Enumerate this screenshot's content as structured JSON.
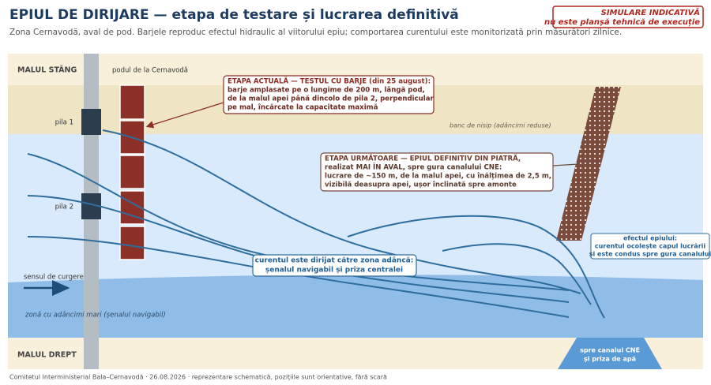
{
  "header": {
    "title": "EPIUL DE DIRIJARE — etapa de testare și lucrarea definitivă",
    "subtitle": "Zona Cernavodă, aval de pod. Barjele reproduc efectul hidraulic al viitorului epiu; comportarea curentului este monitorizată prin măsurători zilnice."
  },
  "stamp": {
    "line1": "SIMULARE INDICATIVĂ",
    "line2": "nu este planșă tehnică de execuție"
  },
  "labels": {
    "left_bank": "MALUL STÂNG",
    "bridge": "podul de la Cernavodă",
    "pier1": "pila 1",
    "pier2": "pila 2",
    "sandbank": "banc de nisip (adâncimi reduse)",
    "flow": "sensul de curgere",
    "deep": "zonă cu adâncimi mari (șenalul navigabil)",
    "right_bank": "MALUL DREPT"
  },
  "callouts": [
    {
      "title": "ETAPA ACTUALĂ — TESTUL CU BARJE (din 25 august):",
      "lines": [
        "barje amplasate pe o lungime de 200 m, lângă pod,",
        "de la malul apei până dincolo de pila 2, perpendicular",
        "pe mal, încărcate la capacitate maximă"
      ]
    },
    {
      "title": "ETAPA URMĂTOARE — EPIUL DEFINITIV DIN PIATRĂ,",
      "lines": [
        "realizat MAI ÎN AVAL, spre gura canalului CNE:",
        "lucrare de ~150 m, de la malul apei, cu înălțimea de 2,5 m,",
        "vizibilă deasupra apei, ușor înclinată spre amonte"
      ]
    }
  ],
  "current_note": [
    "curentul este dirijat către zona adâncă:",
    "șenalul navigabil și priza centralei"
  ],
  "effect_note": [
    "efectul epiului:",
    "curentul ocolește capul lucrării",
    "și este condus spre gura canalului"
  ],
  "canal": [
    "spre canalul CNE",
    "și priza de apă"
  ],
  "footer": "Comitetul Interministerial Bala–Cernavodă · 26.08.2026 · reprezentare schematică, pozițiile sunt orientative, fără scară"
}
